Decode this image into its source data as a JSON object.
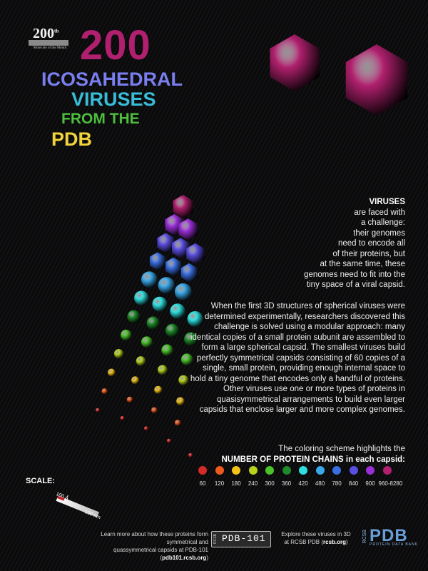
{
  "header": {
    "logo_number": "200",
    "logo_suffix": "th",
    "logo_subtitle": "Molecule of the Month",
    "title_number": "200",
    "title_line1": "ICOSAHEDRAL",
    "title_line2": "VIRUSES",
    "title_line3": "FROM THE",
    "title_line4": "PDB"
  },
  "intro": {
    "heading": "VIRUSES",
    "line1": "are faced with",
    "line2": "a challenge:",
    "line3": "their genomes",
    "line4": "need to encode all",
    "line5": "of their proteins, but",
    "line6": "at the same time, these",
    "line7": "genomes need to fit into the",
    "line8": "tiny space of a viral capsid."
  },
  "body_text": "When the first 3D structures of spherical viruses were determined experimentally, researchers discovered this challenge is solved using a modular approach: many identical copies of a small protein subunit are assembled to form a large spherical capsid. The smallest viruses build perfectly symmetrical capsids consisting of 60 copies of a single, small protein, providing enough internal space to hold a tiny genome that encodes only a handful of proteins. Other viruses use one or more types of proteins in quasisymmetrical arrangements to build even larger capsids that enclose larger and more complex genomes.",
  "scheme": {
    "line1": "The coloring scheme highlights the",
    "line2": "NUMBER OF PROTEIN CHAINS in each capsid:"
  },
  "legend": [
    {
      "value": "60",
      "color": "#d42a2a"
    },
    {
      "value": "120",
      "color": "#ee5a1c"
    },
    {
      "value": "180",
      "color": "#f2c21a"
    },
    {
      "value": "240",
      "color": "#b8d21e"
    },
    {
      "value": "300",
      "color": "#4cc32a"
    },
    {
      "value": "360",
      "color": "#1f8a2a"
    },
    {
      "value": "420",
      "color": "#2ee0e0"
    },
    {
      "value": "480",
      "color": "#3aa8e8"
    },
    {
      "value": "780",
      "color": "#3a6ee0"
    },
    {
      "value": "840",
      "color": "#5a4ee0"
    },
    {
      "value": "900",
      "color": "#9a2fd8"
    },
    {
      "value": "960-8280",
      "color": "#b0206e"
    }
  ],
  "scale": {
    "label": "SCALE:",
    "small": "100 Å",
    "large": "100 nm"
  },
  "footer": {
    "left_line1": "Learn more about how these proteins form symmetrical and",
    "left_line2_pre": "quassymmetrical capsids at PDB-101 (",
    "left_link": "pdb101.rcsb.org",
    "left_line2_post": ")",
    "pdb101_small": "RCSB",
    "pdb101_logo": "PDB-101",
    "right_line1": "Explore these viruses in 3D",
    "right_line2_pre": "at RCSB PDB (",
    "right_link": "rcsb.org",
    "right_line2_post": ")",
    "rcsb_small": "RCSB",
    "rcsb_big": "PDB",
    "rcsb_sub": "PROTEIN DATA BANK"
  }
}
